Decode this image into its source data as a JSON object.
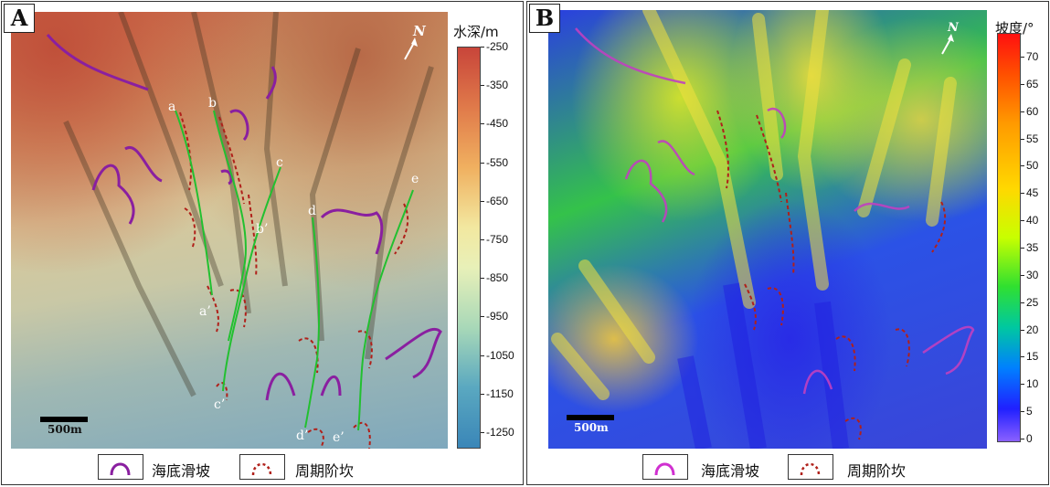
{
  "panelA": {
    "letter": "A",
    "colorbar_title": "水深/m",
    "colorbar_ticks": [
      "-250",
      "-350",
      "-450",
      "-550",
      "-650",
      "-750",
      "-850",
      "-950",
      "-1050",
      "-1150",
      "-1250"
    ],
    "scale_label": "500m",
    "north_label": "N",
    "profile_labels": [
      "a",
      "b",
      "c",
      "d",
      "e",
      "b’",
      "a’",
      "c’",
      "d’",
      "e’"
    ]
  },
  "panelB": {
    "letter": "B",
    "colorbar_title": "坡度/°",
    "colorbar_ticks": [
      "70",
      "65",
      "60",
      "55",
      "50",
      "45",
      "40",
      "35",
      "30",
      "25",
      "20",
      "15",
      "10",
      "5",
      "0"
    ],
    "scale_label": "500m",
    "north_label": "N"
  },
  "legend": {
    "slide_label": "海底滑坡",
    "steps_label": "周期阶坎"
  },
  "colors": {
    "slide": "#8a1fa0",
    "steps": "#b0201a",
    "profile": "#22c030"
  }
}
